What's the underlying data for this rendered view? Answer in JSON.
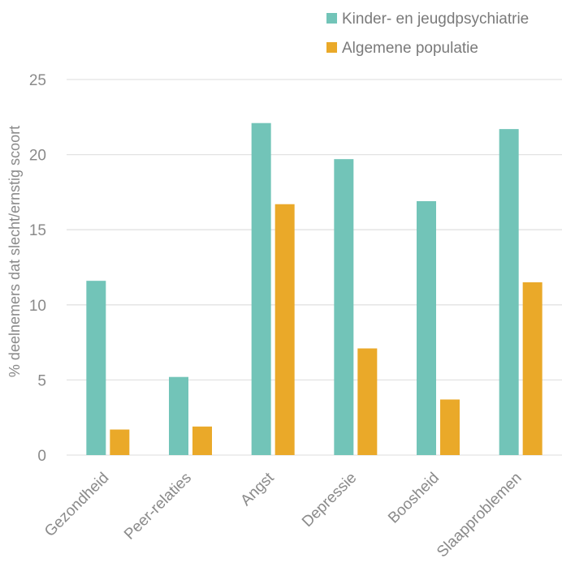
{
  "chart_data": {
    "type": "bar",
    "title": "",
    "xlabel": "",
    "ylabel": "% deelnemers dat slecht/ernstig scoort",
    "ylim": [
      0,
      25
    ],
    "yticks": [
      0,
      5,
      10,
      15,
      20,
      25
    ],
    "grid": true,
    "legend_position": "top-right",
    "categories": [
      "Gezondheid",
      "Peer-relaties",
      "Angst",
      "Depressie",
      "Boosheid",
      "Slaapproblemen"
    ],
    "series": [
      {
        "name": "Kinder- en jeugdpsychiatrie",
        "color": "#72c4b8",
        "values": [
          11.6,
          5.2,
          22.1,
          19.7,
          16.9,
          21.7
        ]
      },
      {
        "name": "Algemene populatie",
        "color": "#eaa929",
        "values": [
          1.7,
          1.9,
          16.7,
          7.1,
          3.7,
          11.5
        ]
      }
    ]
  }
}
